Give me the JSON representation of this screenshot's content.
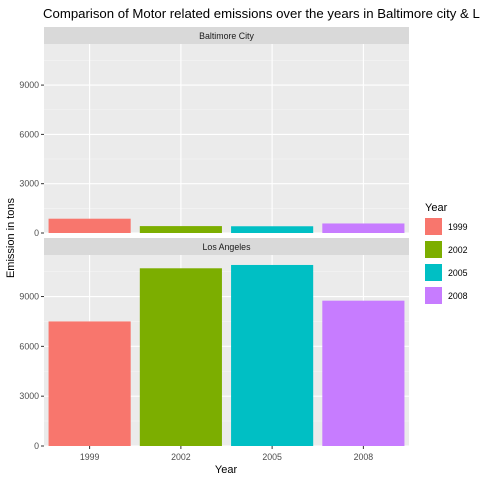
{
  "chart_data": {
    "type": "bar",
    "title": "Comparison of Motor related emissions over the years in Baltimore city & Los Angeles",
    "xlabel": "Year",
    "ylabel": "Emission in tons",
    "categories": [
      "1999",
      "2002",
      "2005",
      "2008"
    ],
    "ylim": [
      0,
      11500
    ],
    "y_ticks": [
      0,
      3000,
      6000,
      9000
    ],
    "grid": true,
    "legend": {
      "title": "Year",
      "placement": "right",
      "entries": [
        {
          "label": "1999",
          "color": "#F8766D"
        },
        {
          "label": "2002",
          "color": "#7CAE00"
        },
        {
          "label": "2005",
          "color": "#00BFC4"
        },
        {
          "label": "2008",
          "color": "#C77CFF"
        }
      ]
    },
    "panels": [
      {
        "name": "Baltimore City",
        "values": [
          870,
          420,
          410,
          580
        ]
      },
      {
        "name": "Los Angeles",
        "values": [
          7500,
          10700,
          10900,
          8750
        ]
      }
    ]
  }
}
